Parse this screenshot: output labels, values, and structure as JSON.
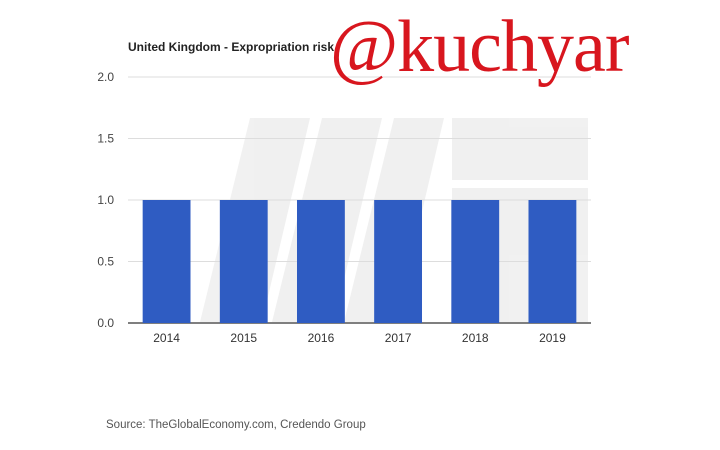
{
  "chart_data": {
    "type": "bar",
    "title": "United Kingdom - Expropriation risk",
    "categories": [
      "2014",
      "2015",
      "2016",
      "2017",
      "2018",
      "2019"
    ],
    "values": [
      1.0,
      1.0,
      1.0,
      1.0,
      1.0,
      1.0
    ],
    "ylim": [
      0,
      2.0
    ],
    "yticks": [
      "0.0",
      "0.5",
      "1.0",
      "1.5",
      "2.0"
    ],
    "xlabel": "",
    "ylabel": "",
    "grid": true,
    "bar_color": "#2f5cc2",
    "grid_color": "#dddddd",
    "axis_color": "#333333"
  },
  "watermark": "@kuchyar",
  "source": "Source: TheGlobalEconomy.com, Credendo Group",
  "logo_watermark": "faint-gray-logo-shape"
}
